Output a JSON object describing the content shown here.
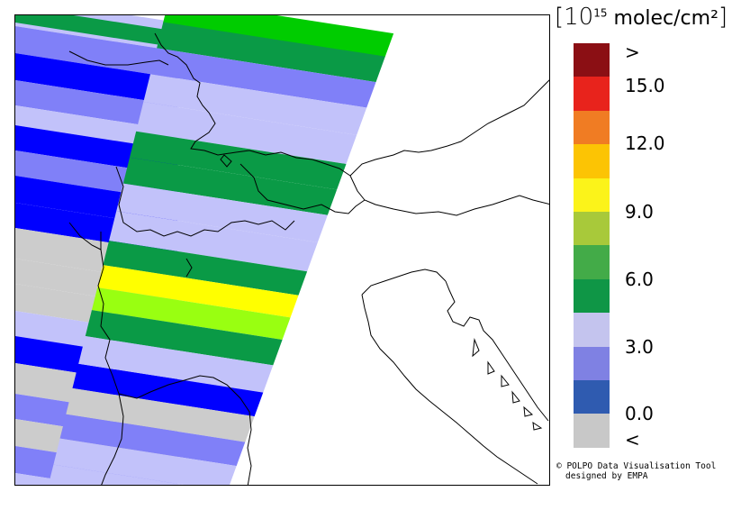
{
  "legend": {
    "title_prefix": "[10",
    "title_exponent": "15",
    "title_suffix": " molec/cm²",
    "title_close": "]",
    "swatches": [
      {
        "color": "#8b0f14"
      },
      {
        "color": "#e8231c"
      },
      {
        "color": "#f07c23"
      },
      {
        "color": "#fcc404"
      },
      {
        "color": "#fbf31a"
      },
      {
        "color": "#a8c93a"
      },
      {
        "color": "#43ab48"
      },
      {
        "color": "#0f9646"
      },
      {
        "color": "#c4c4ee"
      },
      {
        "color": "#7f81e3"
      },
      {
        "color": "#2f5bb0"
      },
      {
        "color": "#c8c8c8"
      }
    ],
    "labels": [
      ">",
      "15.0",
      "12.0",
      "9.0",
      "6.0",
      "3.0",
      "0.0",
      "<"
    ]
  },
  "credit": {
    "line1": "© POLPO Data Visualisation Tool",
    "line2": "designed by EMPA"
  },
  "map_colors": {
    "lavender": "#c2c2fa",
    "mid_blue": "#8080f8",
    "blue": "#0000ff",
    "dark_green": "#0a9a46",
    "bright_green": "#00cc00",
    "yellow": "#ffff00",
    "lime": "#99ff11",
    "grey": "#cccccc",
    "coastline": "#000000"
  }
}
